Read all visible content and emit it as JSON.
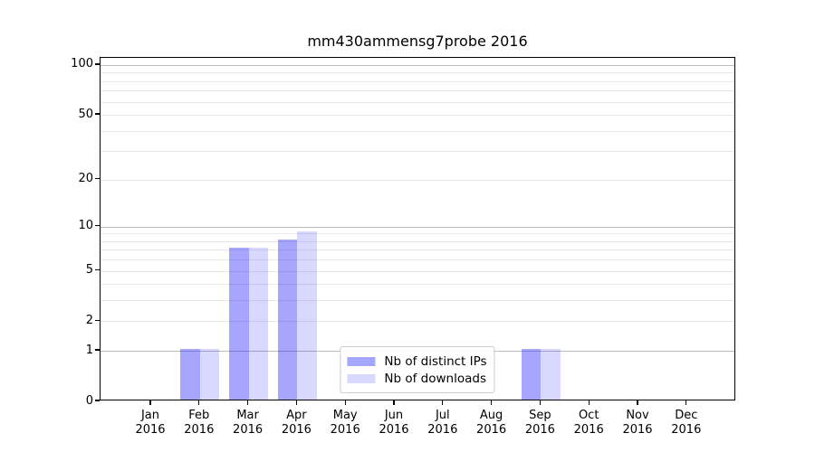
{
  "chart_data": {
    "type": "bar",
    "title": "mm430ammensg7probe 2016",
    "categories": [
      "Jan",
      "Feb",
      "Mar",
      "Apr",
      "May",
      "Jun",
      "Jul",
      "Aug",
      "Sep",
      "Oct",
      "Nov",
      "Dec"
    ],
    "category_year": "2016",
    "series": [
      {
        "name": "Nb of distinct IPs",
        "color": "rgba(0,0,255,0.35)",
        "color_hex_on_white": "#a6a6ff",
        "values": [
          0,
          1,
          7,
          8,
          0,
          0,
          0,
          0,
          1,
          0,
          0,
          0
        ]
      },
      {
        "name": "Nb of downloads",
        "color": "rgba(0,0,255,0.15)",
        "color_hex_on_white": "#d9d9ff",
        "values": [
          0,
          1,
          7,
          9,
          0,
          0,
          0,
          0,
          1,
          0,
          0,
          0
        ]
      }
    ],
    "yaxis": {
      "scale": "log1p",
      "tick_values": [
        0,
        1,
        2,
        5,
        10,
        20,
        50,
        100
      ],
      "major_gridlines": [
        1,
        10,
        100
      ],
      "minor_gridlines": [
        2,
        3,
        4,
        5,
        6,
        7,
        8,
        9,
        20,
        30,
        40,
        50,
        60,
        70,
        80,
        90
      ],
      "top_value": 110.5,
      "ylim": [
        0,
        110.5
      ]
    },
    "xlabel": "",
    "ylabel": "",
    "grid": true,
    "legend": {
      "position": "lower center",
      "entries": [
        "Nb of distinct IPs",
        "Nb of downloads"
      ]
    }
  }
}
